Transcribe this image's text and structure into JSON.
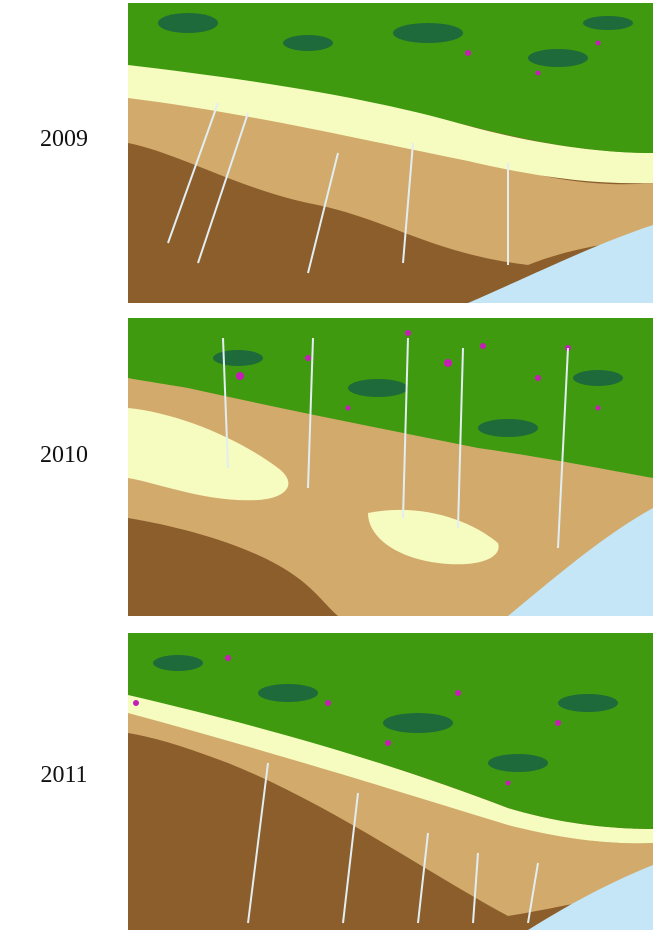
{
  "panels": [
    {
      "year": "2009"
    },
    {
      "year": "2010"
    },
    {
      "year": "2011"
    }
  ],
  "colors": {
    "forest": "#3f9a10",
    "dense_forest": "#1f6a3a",
    "light_vegetation": "#f6fbbf",
    "cropland": "#d2aa6c",
    "bare_soil": "#8b5e2c",
    "urban": "#c81cb8",
    "water": "#c4e6f6",
    "stream": "#e2eef2"
  }
}
